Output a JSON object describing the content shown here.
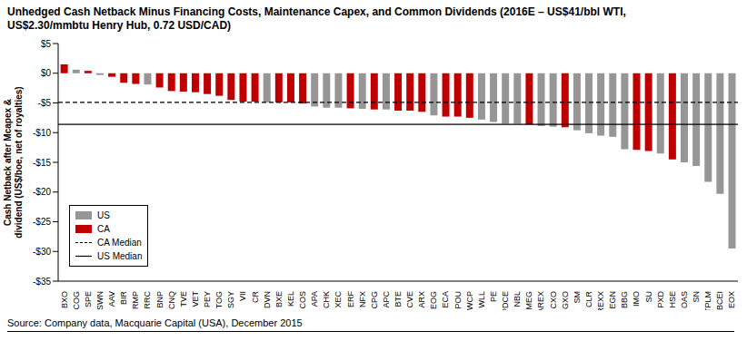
{
  "chart_data": {
    "type": "bar",
    "title": "Unhedged Cash Netback Minus Financing Costs, Maintenance Capex, and Common Dividends (2016E – US$41/bbl WTI, US$2.30/mmbtu Henry Hub, 0.72 USD/CAD)",
    "y_label": [
      "Cash Netback after Mcapex &",
      "dividend (US$/boe, net of royalties)"
    ],
    "source": "Source: Company data, Macquarie Capital (USA), December 2015",
    "categories": [
      "BXO",
      "COG",
      "SPE",
      "SWN",
      "AAV",
      "BIR",
      "RMP",
      "RRC",
      "BNP",
      "CNQ",
      "TVE",
      "VET",
      "PEY",
      "TOG",
      "SGY",
      "VII",
      "CR",
      "DVN",
      "BXE",
      "KEL",
      "COS",
      "APA",
      "CHK",
      "XEC",
      "ERF",
      "NFX",
      "CPG",
      "APC",
      "BTE",
      "CVE",
      "ARX",
      "EOG",
      "ECA",
      "POU",
      "WCP",
      "WLL",
      "PE",
      "PDCE",
      "NBL",
      "MEG",
      "AREX",
      "CXO",
      "GXO",
      "SM",
      "CLR",
      "REXX",
      "EGN",
      "BBG",
      "IMO",
      "SU",
      "PXD",
      "HSE",
      "OAS",
      "SN",
      "TPLM",
      "BCEI",
      "EOX"
    ],
    "series": [
      {
        "name": "US",
        "color": "#969696",
        "values": [
          null,
          0.6,
          null,
          -0.3,
          null,
          null,
          null,
          -1.9,
          null,
          null,
          null,
          null,
          null,
          null,
          null,
          null,
          null,
          -4.9,
          null,
          null,
          null,
          -5.6,
          -5.8,
          -5.8,
          null,
          -6.0,
          null,
          -6.1,
          null,
          null,
          null,
          -7.1,
          null,
          null,
          null,
          -7.8,
          -8.2,
          -8.5,
          -8.5,
          null,
          -8.9,
          -9.0,
          null,
          -9.6,
          -10.1,
          -10.5,
          -10.7,
          -12.8,
          null,
          null,
          -13.5,
          null,
          -15.0,
          -15.6,
          -18.3,
          -20.3,
          -29.5
        ]
      },
      {
        "name": "CA",
        "color": "#c00000",
        "values": [
          1.5,
          null,
          0.4,
          null,
          -0.6,
          -1.6,
          -1.8,
          null,
          -2.4,
          -3.0,
          -3.1,
          -3.2,
          -3.5,
          -3.8,
          -4.5,
          -4.8,
          -4.8,
          null,
          -4.9,
          -4.9,
          -5.1,
          null,
          null,
          null,
          -5.9,
          null,
          -6.1,
          null,
          -6.3,
          -6.3,
          -6.5,
          null,
          -7.3,
          -7.3,
          -7.5,
          null,
          null,
          null,
          null,
          -8.6,
          null,
          null,
          -9.1,
          null,
          null,
          null,
          null,
          null,
          -12.9,
          -13.1,
          null,
          -14.5,
          null,
          null,
          null,
          null,
          null
        ]
      }
    ],
    "reference_lines": [
      {
        "name": "CA Median",
        "value": -4.9,
        "color": "#000000",
        "line_style": "dashed"
      },
      {
        "name": "US Median",
        "value": -8.6,
        "color": "#000000",
        "line_style": "solid"
      }
    ],
    "ylim": [
      -35,
      5
    ],
    "yticks": [
      {
        "value": 5,
        "label": "$5"
      },
      {
        "value": 0,
        "label": "$0"
      },
      {
        "value": -5,
        "label": "-$5"
      },
      {
        "value": -10,
        "label": "-$10"
      },
      {
        "value": -15,
        "label": "-$15"
      },
      {
        "value": -20,
        "label": "-$20"
      },
      {
        "value": -25,
        "label": "-$25"
      },
      {
        "value": -30,
        "label": "-$30"
      },
      {
        "value": -35,
        "label": "-$35"
      }
    ],
    "grid": false,
    "legend": "bottom-left"
  }
}
